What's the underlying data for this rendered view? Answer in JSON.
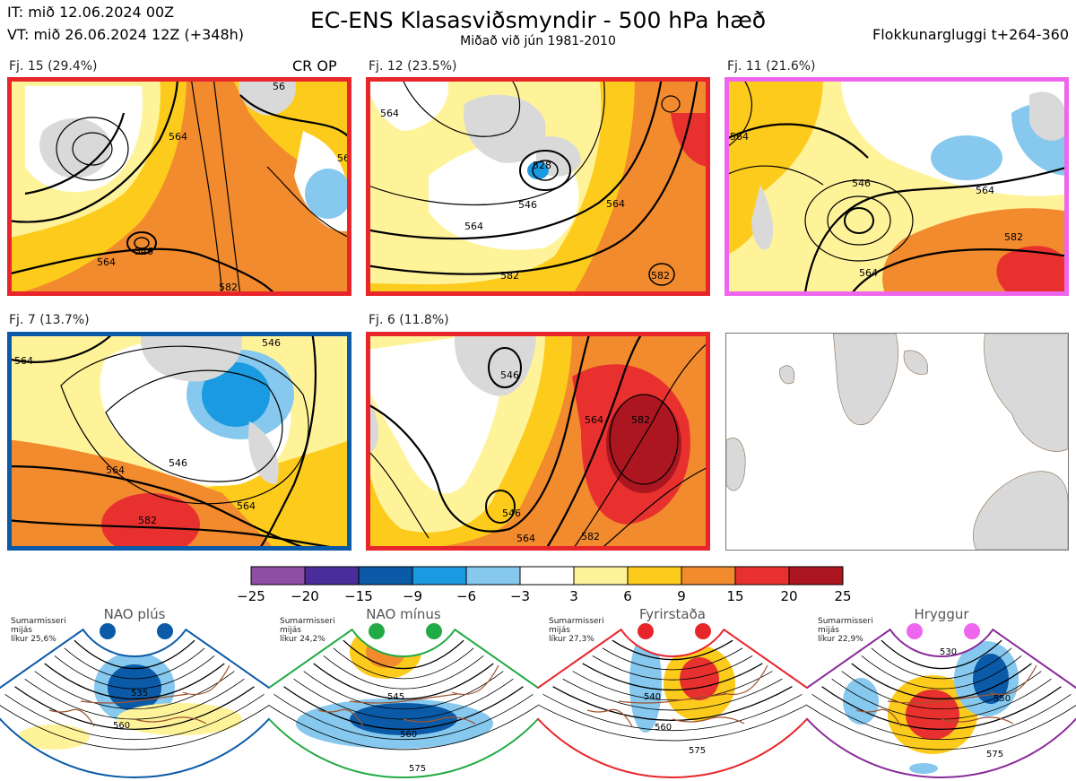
{
  "header": {
    "it": "IT: mið 12.06.2024 00Z",
    "vt": "VT: mið 26.06.2024 12Z  (+348h)",
    "title": "EC-ENS Klasasviðsmyndir - 500 hPa hæð",
    "subtitle": "Miðað við jún 1981-2010",
    "window": "Flokkunargluggi t+264-360"
  },
  "cr_op_label": "CR OP",
  "colors": {
    "red_frame": "#e8252a",
    "magenta_frame": "#ee66ee",
    "blue_frame": "#0a5aa8",
    "green_frame": "#22aa44",
    "purple_frame": "#8a2a9a",
    "land": "#d9d9d9",
    "coast": "#8a6a4a"
  },
  "panels": [
    {
      "label": "Fj. 15 (29.4%)",
      "frame": "red",
      "contour_labels": [
        "564",
        "546",
        "564",
        "582",
        "564",
        "56"
      ]
    },
    {
      "label": "Fj. 12 (23.5%)",
      "frame": "red",
      "contour_labels": [
        "528",
        "546",
        "564",
        "582",
        "582",
        "564",
        "564"
      ]
    },
    {
      "label": "Fj. 11 (21.6%)",
      "frame": "magenta",
      "contour_labels": [
        "546",
        "564",
        "582",
        "564",
        "564"
      ]
    },
    {
      "label": "Fj. 7 (13.7%)",
      "frame": "blue",
      "contour_labels": [
        "546",
        "564",
        "564",
        "582",
        "546",
        "564"
      ]
    },
    {
      "label": "Fj. 6 (11.8%)",
      "frame": "red",
      "contour_labels": [
        "546",
        "564",
        "582",
        "546",
        "564",
        "582"
      ]
    }
  ],
  "chart_data": {
    "type": "heatmap",
    "title": "EC-ENS Klasasviðsmyndir - 500 hPa hæð",
    "subtitle": "Miðað við jún 1981-2010",
    "colorbar": {
      "ticks": [
        "−25",
        "−20",
        "−15",
        "−9",
        "−6",
        "−3",
        "3",
        "6",
        "9",
        "15",
        "20",
        "25"
      ],
      "bins": [
        {
          "from": -25,
          "to": -20,
          "color": "#8e4ea3"
        },
        {
          "from": -20,
          "to": -15,
          "color": "#4a2d9a"
        },
        {
          "from": -15,
          "to": -9,
          "color": "#0a5aa8"
        },
        {
          "from": -9,
          "to": -6,
          "color": "#1a9ae0"
        },
        {
          "from": -6,
          "to": -3,
          "color": "#86c8ee"
        },
        {
          "from": -3,
          "to": 3,
          "color": "#ffffff"
        },
        {
          "from": 3,
          "to": 6,
          "color": "#fff39a"
        },
        {
          "from": 6,
          "to": 9,
          "color": "#fccb1c"
        },
        {
          "from": 9,
          "to": 15,
          "color": "#f28a2e"
        },
        {
          "from": 15,
          "to": 20,
          "color": "#e8312e"
        },
        {
          "from": 20,
          "to": 25,
          "color": "#ab1620"
        }
      ]
    },
    "clusters": [
      {
        "label": "Fj. 15 (29.4%)",
        "percent": 29.4
      },
      {
        "label": "Fj. 12 (23.5%)",
        "percent": 23.5
      },
      {
        "label": "Fj. 11 (21.6%)",
        "percent": 21.6
      },
      {
        "label": "Fj. 7 (13.7%)",
        "percent": 13.7
      },
      {
        "label": "Fj. 6 (11.8%)",
        "percent": 11.8
      }
    ]
  },
  "regimes": [
    {
      "name": "NAO plús",
      "info": [
        "Sumarmisseri",
        "mijás",
        "líkur 25,6%"
      ],
      "frame": "#0a5aa8",
      "dot": "#0a5aa8",
      "contours": [
        "535",
        "560"
      ]
    },
    {
      "name": "NAO mínus",
      "info": [
        "Sumarmisseri",
        "mijás",
        "líkur 24,2%"
      ],
      "frame": "#22aa44",
      "dot": "#22aa44",
      "contours": [
        "545",
        "560",
        "575"
      ]
    },
    {
      "name": "Fyrirstaða",
      "info": [
        "Sumarmisseri",
        "mijás",
        "líkur 27,3%"
      ],
      "frame": "#e8252a",
      "dot": "#e8252a",
      "contours": [
        "540",
        "560",
        "575"
      ]
    },
    {
      "name": "Hryggur",
      "info": [
        "Sumarmisseri",
        "mijás",
        "líkur 22,9%"
      ],
      "frame": "#8a2a9a",
      "dot": "#ee66ee",
      "contours": [
        "530",
        "550",
        "575"
      ]
    }
  ]
}
